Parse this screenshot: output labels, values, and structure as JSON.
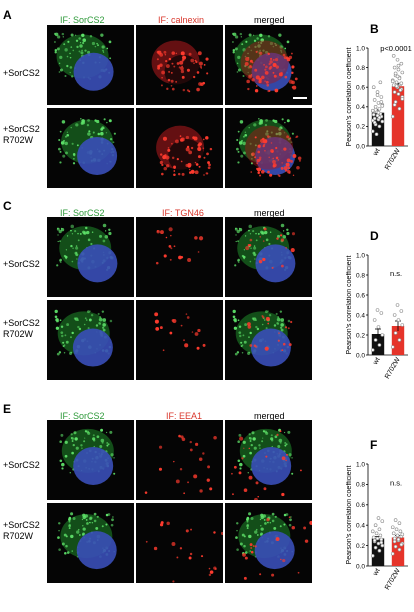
{
  "panels": [
    {
      "letter": "A",
      "chart_letter": "B",
      "header_green": "IF: SorCS2",
      "header_red": "IF: calnexin",
      "header_merged": "merged",
      "row1": "+SorCS2",
      "row2a": "+SorCS2",
      "row2b": "R702W",
      "stain": "er",
      "sig": "p<0.0001"
    },
    {
      "letter": "C",
      "chart_letter": "D",
      "header_green": "IF: SorCS2",
      "header_red": "IF: TGN46",
      "header_merged": "merged",
      "row1": "+SorCS2",
      "row2a": "+SorCS2",
      "row2b": "R702W",
      "stain": "golgi",
      "sig": "n.s."
    },
    {
      "letter": "E",
      "chart_letter": "F",
      "header_green": "IF: SorCS2",
      "header_red": "IF: EEA1",
      "header_merged": "merged",
      "row1": "+SorCS2",
      "row2a": "+SorCS2",
      "row2b": "R702W",
      "stain": "endo",
      "sig": "n.s."
    }
  ],
  "chart_data": [
    {
      "type": "bar",
      "categories": [
        "wt",
        "R702W"
      ],
      "values": [
        0.34,
        0.61
      ],
      "errors": [
        0.03,
        0.03
      ],
      "ylabel": "Pearson's correlation coefficient",
      "ylim": [
        0,
        1.0
      ],
      "yticks": [
        "0.0",
        "0.2",
        "0.4",
        "0.6",
        "0.8",
        "1.0"
      ],
      "annotation": "p<0.0001",
      "colors": [
        "#111111",
        "#e5342a"
      ],
      "points": [
        [
          0.15,
          0.2,
          0.22,
          0.25,
          0.27,
          0.28,
          0.3,
          0.31,
          0.32,
          0.33,
          0.35,
          0.36,
          0.38,
          0.4,
          0.42,
          0.44,
          0.47,
          0.5,
          0.55,
          0.6,
          0.65,
          0.12,
          0.26,
          0.29,
          0.37,
          0.41,
          0.34,
          0.24,
          0.45,
          0.52
        ],
        [
          0.3,
          0.38,
          0.45,
          0.5,
          0.53,
          0.55,
          0.58,
          0.6,
          0.62,
          0.63,
          0.65,
          0.67,
          0.7,
          0.72,
          0.75,
          0.78,
          0.8,
          0.84,
          0.88,
          0.92,
          0.57,
          0.61,
          0.66,
          0.69,
          0.74,
          0.48,
          0.82,
          0.42,
          0.64,
          0.71
        ]
      ]
    },
    {
      "type": "bar",
      "categories": [
        "wt",
        "R702W"
      ],
      "values": [
        0.21,
        0.29
      ],
      "errors": [
        0.05,
        0.05
      ],
      "ylabel": "Pearson's correlation coefficient",
      "ylim": [
        0,
        1.0
      ],
      "yticks": [
        "0.0",
        "0.2",
        "0.4",
        "0.6",
        "0.8",
        "1.0"
      ],
      "annotation": "n.s.",
      "colors": [
        "#111111",
        "#e5342a"
      ],
      "points": [
        [
          0.05,
          0.1,
          0.15,
          0.2,
          0.28,
          0.35,
          0.42,
          0.45
        ],
        [
          0.08,
          0.15,
          0.22,
          0.3,
          0.35,
          0.4,
          0.44,
          0.5
        ]
      ]
    },
    {
      "type": "bar",
      "categories": [
        "wt",
        "R702W"
      ],
      "values": [
        0.27,
        0.28
      ],
      "errors": [
        0.02,
        0.02
      ],
      "ylabel": "Pearson's correlation coefficient",
      "ylim": [
        0,
        1.0
      ],
      "yticks": [
        "0.0",
        "0.2",
        "0.4",
        "0.6",
        "0.8",
        "1.0"
      ],
      "annotation": "n.s.",
      "colors": [
        "#111111",
        "#e5342a"
      ],
      "points": [
        [
          0.1,
          0.15,
          0.18,
          0.2,
          0.22,
          0.24,
          0.26,
          0.27,
          0.28,
          0.3,
          0.32,
          0.34,
          0.36,
          0.4,
          0.44,
          0.47,
          0.25,
          0.23
        ],
        [
          0.12,
          0.16,
          0.19,
          0.22,
          0.25,
          0.27,
          0.29,
          0.3,
          0.32,
          0.34,
          0.36,
          0.38,
          0.42,
          0.45,
          0.31,
          0.26,
          0.24,
          0.21
        ]
      ]
    }
  ]
}
